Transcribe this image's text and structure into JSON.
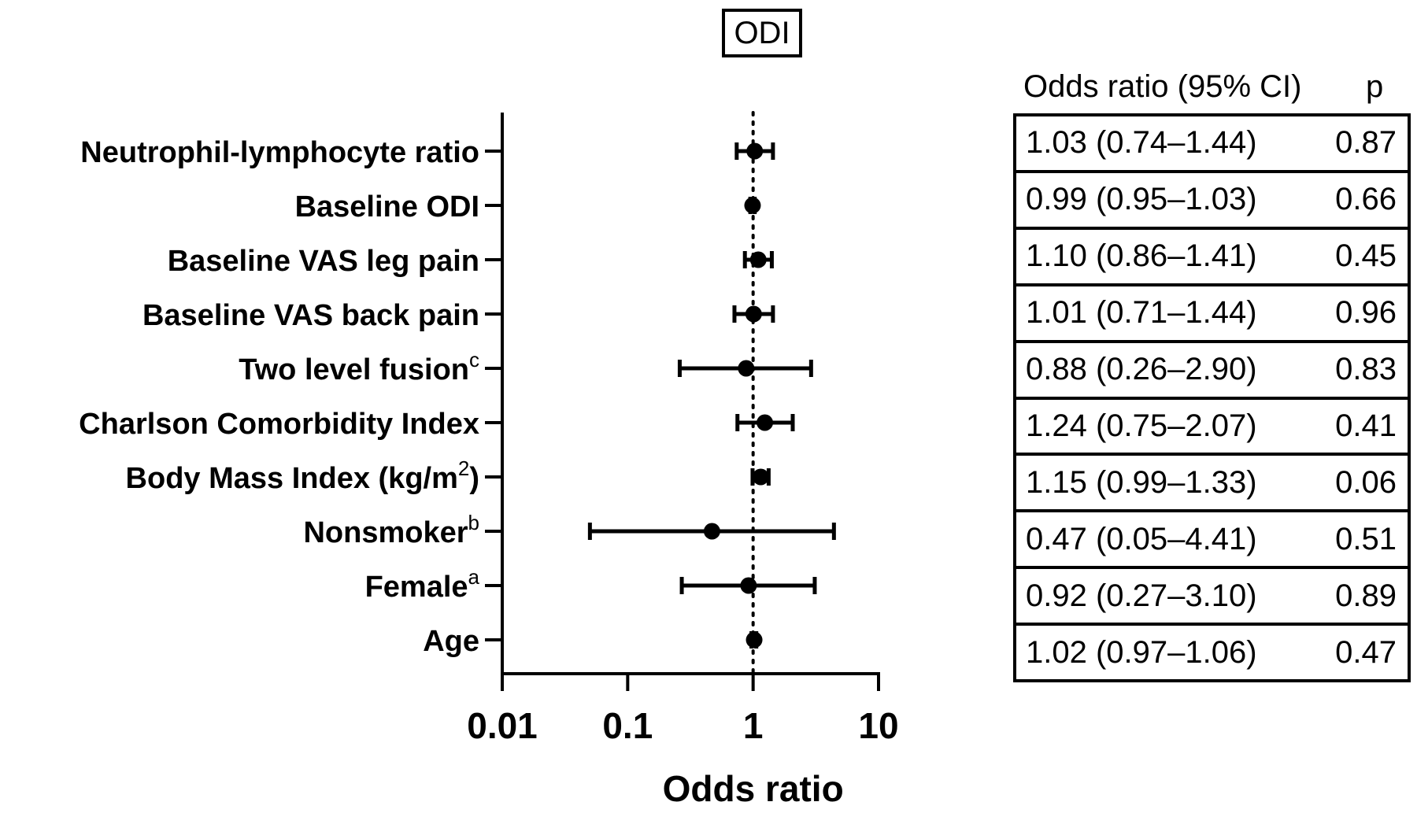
{
  "chart_data": {
    "type": "forest",
    "title": "ODI",
    "xlabel": "Odds ratio",
    "x_scale": "log",
    "xlim": [
      0.01,
      10
    ],
    "x_ticks": [
      "0.01",
      "0.1",
      "1",
      "10"
    ],
    "reference_line": 1,
    "rows": [
      {
        "label": "Neutrophil-lymphocyte ratio",
        "sup": "",
        "or": 1.03,
        "lo": 0.74,
        "hi": 1.44,
        "ci_text": "1.03 (0.74–1.44)",
        "p": "0.87"
      },
      {
        "label": "Baseline ODI",
        "sup": "",
        "or": 0.99,
        "lo": 0.95,
        "hi": 1.03,
        "ci_text": "0.99 (0.95–1.03)",
        "p": "0.66"
      },
      {
        "label": "Baseline VAS leg pain",
        "sup": "",
        "or": 1.1,
        "lo": 0.86,
        "hi": 1.41,
        "ci_text": "1.10 (0.86–1.41)",
        "p": "0.45"
      },
      {
        "label": "Baseline VAS back pain",
        "sup": "",
        "or": 1.01,
        "lo": 0.71,
        "hi": 1.44,
        "ci_text": "1.01 (0.71–1.44)",
        "p": "0.96"
      },
      {
        "label": "Two level fusion",
        "sup": "c",
        "or": 0.88,
        "lo": 0.26,
        "hi": 2.9,
        "ci_text": "0.88 (0.26–2.90)",
        "p": "0.83"
      },
      {
        "label": "Charlson Comorbidity Index",
        "sup": "",
        "or": 1.24,
        "lo": 0.75,
        "hi": 2.07,
        "ci_text": "1.24 (0.75–2.07)",
        "p": "0.41"
      },
      {
        "label": "Body Mass Index (kg/m",
        "sup": "2",
        "suffix": ")",
        "or": 1.15,
        "lo": 0.99,
        "hi": 1.33,
        "ci_text": "1.15 (0.99–1.33)",
        "p": "0.06"
      },
      {
        "label": "Nonsmoker",
        "sup": "b",
        "or": 0.47,
        "lo": 0.05,
        "hi": 4.41,
        "ci_text": "0.47 (0.05–4.41)",
        "p": "0.51"
      },
      {
        "label": "Female",
        "sup": "a",
        "or": 0.92,
        "lo": 0.27,
        "hi": 3.1,
        "ci_text": "0.92 (0.27–3.10)",
        "p": "0.89"
      },
      {
        "label": "Age",
        "sup": "",
        "or": 1.02,
        "lo": 0.97,
        "hi": 1.06,
        "ci_text": "1.02 (0.97–1.06)",
        "p": "0.47"
      }
    ],
    "table_headers": {
      "or": "Odds ratio (95% CI)",
      "p": "p"
    }
  }
}
